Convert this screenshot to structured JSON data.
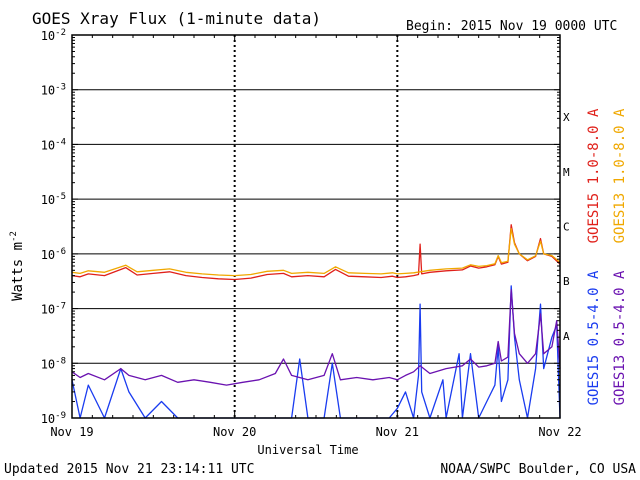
{
  "chart_data": {
    "type": "line",
    "title": "GOES Xray Flux (1-minute data)",
    "begin_label": "Begin:  2015 Nov 19 0000 UTC",
    "xlabel": "Universal Time",
    "ylabel_main": "Watts m",
    "ylabel_sup": "-2",
    "x_ticks": [
      "Nov 19",
      "Nov 20",
      "Nov 21",
      "Nov 22"
    ],
    "x_range_days": [
      0,
      3
    ],
    "y_scale": "log",
    "y_range": [
      1e-09,
      0.01
    ],
    "y_ticks": [
      {
        "base": "10",
        "exp": "-9"
      },
      {
        "base": "10",
        "exp": "-8"
      },
      {
        "base": "10",
        "exp": "-7"
      },
      {
        "base": "10",
        "exp": "-6"
      },
      {
        "base": "10",
        "exp": "-5"
      },
      {
        "base": "10",
        "exp": "-4"
      },
      {
        "base": "10",
        "exp": "-3"
      },
      {
        "base": "10",
        "exp": "-2"
      }
    ],
    "flare_classes": [
      {
        "label": "A",
        "value": 1e-08
      },
      {
        "label": "B",
        "value": 1e-07
      },
      {
        "label": "C",
        "value": 1e-06
      },
      {
        "label": "M",
        "value": 1e-05
      },
      {
        "label": "X",
        "value": 0.0001
      }
    ],
    "series": [
      {
        "name": "GOES15 1.0-8.0 A",
        "color": "#e0201a",
        "band": "long",
        "points": [
          [
            0,
            4e-07
          ],
          [
            0.05,
            3.8e-07
          ],
          [
            0.1,
            4.3e-07
          ],
          [
            0.2,
            4e-07
          ],
          [
            0.33,
            5.6e-07
          ],
          [
            0.4,
            4.1e-07
          ],
          [
            0.5,
            4.4e-07
          ],
          [
            0.6,
            4.7e-07
          ],
          [
            0.7,
            4e-07
          ],
          [
            0.8,
            3.7e-07
          ],
          [
            0.9,
            3.5e-07
          ],
          [
            1.0,
            3.4e-07
          ],
          [
            1.1,
            3.6e-07
          ],
          [
            1.2,
            4.2e-07
          ],
          [
            1.3,
            4.4e-07
          ],
          [
            1.35,
            3.8e-07
          ],
          [
            1.45,
            4e-07
          ],
          [
            1.55,
            3.8e-07
          ],
          [
            1.62,
            5.2e-07
          ],
          [
            1.7,
            3.9e-07
          ],
          [
            1.8,
            3.8e-07
          ],
          [
            1.9,
            3.7e-07
          ],
          [
            1.97,
            3.9e-07
          ],
          [
            2.0,
            3.7e-07
          ],
          [
            2.05,
            3.8e-07
          ],
          [
            2.1,
            4e-07
          ],
          [
            2.13,
            4.2e-07
          ],
          [
            2.14,
            1.5e-06
          ],
          [
            2.15,
            4.3e-07
          ],
          [
            2.2,
            4.6e-07
          ],
          [
            2.3,
            4.9e-07
          ],
          [
            2.4,
            5.1e-07
          ],
          [
            2.45,
            6e-07
          ],
          [
            2.5,
            5.5e-07
          ],
          [
            2.55,
            5.8e-07
          ],
          [
            2.6,
            6.3e-07
          ],
          [
            2.62,
            9e-07
          ],
          [
            2.64,
            6.5e-07
          ],
          [
            2.68,
            7e-07
          ],
          [
            2.7,
            3.4e-06
          ],
          [
            2.72,
            1.6e-06
          ],
          [
            2.75,
            1e-06
          ],
          [
            2.8,
            7.5e-07
          ],
          [
            2.85,
            9e-07
          ],
          [
            2.88,
            1.9e-06
          ],
          [
            2.9,
            1e-06
          ],
          [
            2.95,
            9e-07
          ],
          [
            3.0,
            6.5e-07
          ]
        ]
      },
      {
        "name": "GOES13 1.0-8.0 A",
        "color": "#f0a800",
        "band": "long",
        "points": [
          [
            0,
            4.6e-07
          ],
          [
            0.05,
            4.4e-07
          ],
          [
            0.1,
            4.9e-07
          ],
          [
            0.2,
            4.6e-07
          ],
          [
            0.33,
            6.2e-07
          ],
          [
            0.4,
            4.7e-07
          ],
          [
            0.5,
            5e-07
          ],
          [
            0.6,
            5.3e-07
          ],
          [
            0.7,
            4.6e-07
          ],
          [
            0.8,
            4.3e-07
          ],
          [
            0.9,
            4.1e-07
          ],
          [
            1.0,
            4e-07
          ],
          [
            1.1,
            4.2e-07
          ],
          [
            1.2,
            4.8e-07
          ],
          [
            1.3,
            5e-07
          ],
          [
            1.35,
            4.4e-07
          ],
          [
            1.45,
            4.6e-07
          ],
          [
            1.55,
            4.4e-07
          ],
          [
            1.62,
            5.8e-07
          ],
          [
            1.7,
            4.5e-07
          ],
          [
            1.8,
            4.4e-07
          ],
          [
            1.9,
            4.3e-07
          ],
          [
            1.97,
            4.5e-07
          ],
          [
            2.0,
            4.3e-07
          ],
          [
            2.05,
            4.4e-07
          ],
          [
            2.1,
            4.5e-07
          ],
          [
            2.2,
            5e-07
          ],
          [
            2.3,
            5.3e-07
          ],
          [
            2.4,
            5.5e-07
          ],
          [
            2.45,
            6.3e-07
          ],
          [
            2.5,
            5.9e-07
          ],
          [
            2.55,
            6.1e-07
          ],
          [
            2.6,
            6.6e-07
          ],
          [
            2.62,
            9.3e-07
          ],
          [
            2.64,
            6.9e-07
          ],
          [
            2.68,
            7.3e-07
          ],
          [
            2.7,
            2.9e-06
          ],
          [
            2.72,
            1.5e-06
          ],
          [
            2.75,
            1e-06
          ],
          [
            2.8,
            7.8e-07
          ],
          [
            2.85,
            9.2e-07
          ],
          [
            2.88,
            1.7e-06
          ],
          [
            2.9,
            1e-06
          ],
          [
            2.95,
            9.3e-07
          ],
          [
            3.0,
            7e-07
          ]
        ]
      },
      {
        "name": "GOES15 0.5-4.0 A",
        "color": "#1a3cf0",
        "band": "short",
        "points": [
          [
            0,
            5e-09
          ],
          [
            0.05,
            1e-09
          ],
          [
            0.1,
            4e-09
          ],
          [
            0.2,
            1e-09
          ],
          [
            0.3,
            8e-09
          ],
          [
            0.35,
            3e-09
          ],
          [
            0.45,
            1e-09
          ],
          [
            0.55,
            2e-09
          ],
          [
            0.65,
            1e-09
          ],
          [
            0.75,
            1e-09
          ],
          [
            0.85,
            1e-09
          ],
          [
            0.95,
            1e-09
          ],
          [
            1.05,
            1e-09
          ],
          [
            1.15,
            1e-09
          ],
          [
            1.25,
            1e-09
          ],
          [
            1.35,
            1e-09
          ],
          [
            1.4,
            1.2e-08
          ],
          [
            1.45,
            1e-09
          ],
          [
            1.55,
            1e-09
          ],
          [
            1.6,
            1e-08
          ],
          [
            1.65,
            1e-09
          ],
          [
            1.75,
            1e-09
          ],
          [
            1.85,
            1e-09
          ],
          [
            1.95,
            1e-09
          ],
          [
            2.0,
            1.5e-09
          ],
          [
            2.05,
            3e-09
          ],
          [
            2.1,
            1e-09
          ],
          [
            2.13,
            6e-09
          ],
          [
            2.14,
            1.2e-07
          ],
          [
            2.15,
            3e-09
          ],
          [
            2.2,
            1e-09
          ],
          [
            2.28,
            5e-09
          ],
          [
            2.3,
            1e-09
          ],
          [
            2.38,
            1.5e-08
          ],
          [
            2.4,
            1e-09
          ],
          [
            2.45,
            1.5e-08
          ],
          [
            2.5,
            1e-09
          ],
          [
            2.55,
            2e-09
          ],
          [
            2.6,
            4e-09
          ],
          [
            2.62,
            2e-08
          ],
          [
            2.64,
            2e-09
          ],
          [
            2.68,
            5e-09
          ],
          [
            2.7,
            2.6e-07
          ],
          [
            2.72,
            3e-08
          ],
          [
            2.75,
            5e-09
          ],
          [
            2.8,
            1e-09
          ],
          [
            2.85,
            8e-09
          ],
          [
            2.88,
            1.2e-07
          ],
          [
            2.9,
            8e-09
          ],
          [
            2.95,
            3e-08
          ],
          [
            2.98,
            5e-08
          ],
          [
            3.0,
            1e-09
          ]
        ]
      },
      {
        "name": "GOES13 0.5-4.0 A",
        "color": "#6a12b0",
        "band": "short",
        "points": [
          [
            0,
            7e-09
          ],
          [
            0.05,
            5.5e-09
          ],
          [
            0.1,
            6.5e-09
          ],
          [
            0.2,
            5e-09
          ],
          [
            0.3,
            8e-09
          ],
          [
            0.35,
            6e-09
          ],
          [
            0.45,
            5e-09
          ],
          [
            0.55,
            6e-09
          ],
          [
            0.65,
            4.5e-09
          ],
          [
            0.75,
            5e-09
          ],
          [
            0.85,
            4.5e-09
          ],
          [
            0.95,
            4e-09
          ],
          [
            1.05,
            4.5e-09
          ],
          [
            1.15,
            5e-09
          ],
          [
            1.25,
            6.5e-09
          ],
          [
            1.3,
            1.2e-08
          ],
          [
            1.35,
            6e-09
          ],
          [
            1.45,
            5e-09
          ],
          [
            1.55,
            6e-09
          ],
          [
            1.6,
            1.5e-08
          ],
          [
            1.65,
            5e-09
          ],
          [
            1.75,
            5.5e-09
          ],
          [
            1.85,
            5e-09
          ],
          [
            1.95,
            5.5e-09
          ],
          [
            2.0,
            5e-09
          ],
          [
            2.05,
            6e-09
          ],
          [
            2.1,
            7e-09
          ],
          [
            2.14,
            9e-09
          ],
          [
            2.2,
            6.5e-09
          ],
          [
            2.3,
            8e-09
          ],
          [
            2.4,
            9e-09
          ],
          [
            2.45,
            1.2e-08
          ],
          [
            2.5,
            8.5e-09
          ],
          [
            2.55,
            9e-09
          ],
          [
            2.6,
            1e-08
          ],
          [
            2.62,
            2.5e-08
          ],
          [
            2.64,
            1.1e-08
          ],
          [
            2.68,
            1.3e-08
          ],
          [
            2.7,
            2.2e-07
          ],
          [
            2.72,
            3.5e-08
          ],
          [
            2.75,
            1.5e-08
          ],
          [
            2.8,
            1e-08
          ],
          [
            2.85,
            1.5e-08
          ],
          [
            2.88,
            8e-08
          ],
          [
            2.9,
            1.5e-08
          ],
          [
            2.95,
            2e-08
          ],
          [
            2.98,
            6e-08
          ],
          [
            3.0,
            8e-09
          ]
        ]
      }
    ]
  },
  "footer": {
    "updated": "Updated 2015 Nov 21 23:14:11 UTC",
    "source": "NOAA/SWPC Boulder, CO USA"
  }
}
